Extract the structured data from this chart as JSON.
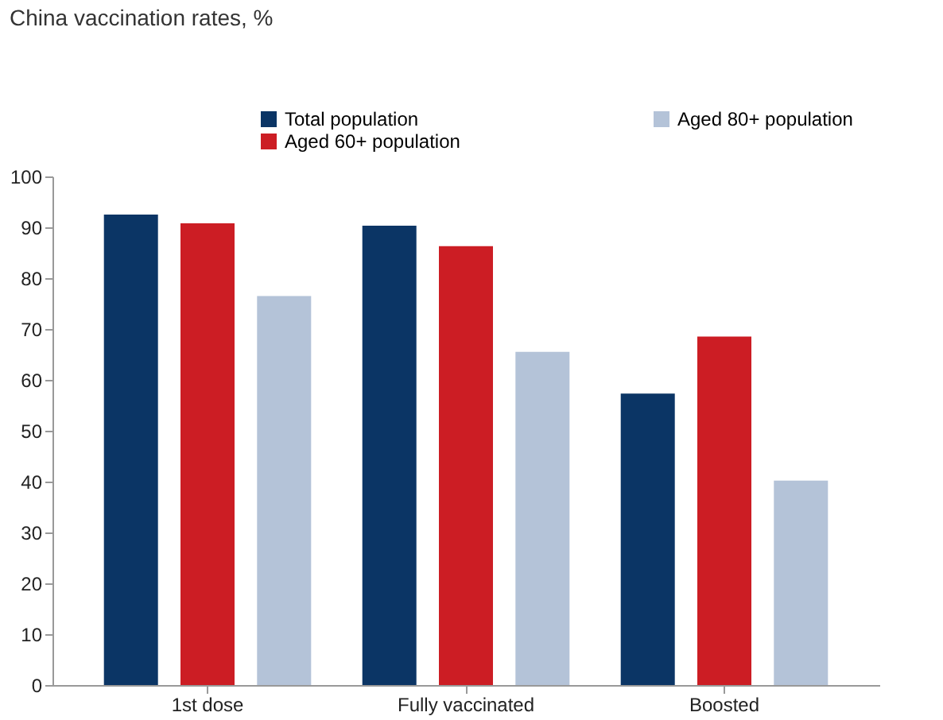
{
  "chart_data": {
    "type": "bar",
    "title": "China vaccination rates, %",
    "categories": [
      "1st dose",
      "Fully vaccinated",
      "Boosted"
    ],
    "series": [
      {
        "name": "Total population",
        "color": "#0b3565",
        "values": [
          92.5,
          90.3,
          57.3
        ]
      },
      {
        "name": "Aged 60+ population",
        "color": "#cc1d24",
        "values": [
          90.8,
          86.3,
          68.5
        ]
      },
      {
        "name": "Aged 80+ population",
        "color": "#b4c3d8",
        "values": [
          76.5,
          65.5,
          40.2
        ]
      }
    ],
    "ylim": [
      0,
      100
    ],
    "yticks": [
      0,
      10,
      20,
      30,
      40,
      50,
      60,
      70,
      80,
      90,
      100
    ],
    "grid": false,
    "legend": "top"
  }
}
